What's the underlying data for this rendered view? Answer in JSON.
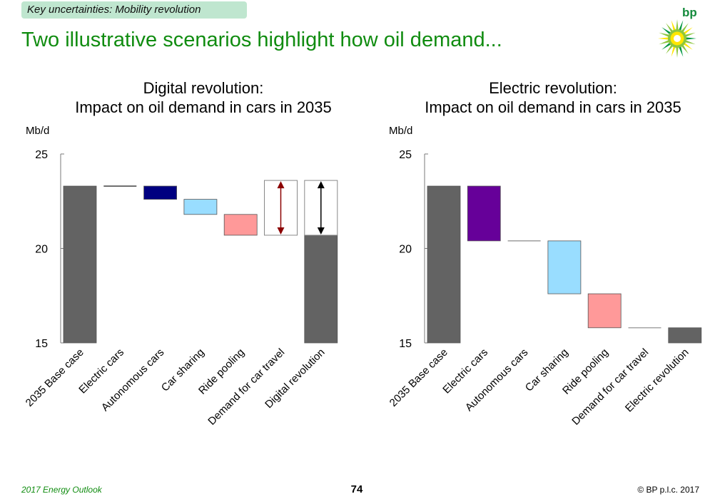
{
  "header": {
    "tag": "Key uncertainties: Mobility revolution",
    "title": "Two illustrative scenarios highlight how oil demand..."
  },
  "logo": {
    "text": "bp",
    "icon": "bp-helios-logo-icon"
  },
  "footer": {
    "left": "2017 Energy Outlook",
    "page": "74",
    "right": "© BP p.l.c. 2017"
  },
  "chart_data": [
    {
      "type": "bar",
      "subtype": "waterfall",
      "title_line1": "Digital revolution:",
      "title_line2": "Impact on oil demand in cars in 2035",
      "ylabel": "Mb/d",
      "ylim": [
        15,
        25
      ],
      "yticks": [
        "15",
        "20",
        "25"
      ],
      "grid": false,
      "categories": [
        "2035 Base case",
        "Electric cars",
        "Autonomous cars",
        "Car sharing",
        "Ride pooling",
        "Demand for car travel",
        "Digital revolution"
      ],
      "bars": [
        {
          "kind": "total",
          "low": 15,
          "high": 23.3,
          "color": "#636363"
        },
        {
          "kind": "delta",
          "low": 23.3,
          "high": 23.3,
          "color": "#000000"
        },
        {
          "kind": "delta",
          "low": 22.6,
          "high": 23.3,
          "color": "#000080"
        },
        {
          "kind": "delta",
          "low": 21.8,
          "high": 22.6,
          "color": "#99ddff"
        },
        {
          "kind": "delta",
          "low": 20.7,
          "high": 21.8,
          "color": "#ff9999"
        },
        {
          "kind": "range",
          "low": 20.7,
          "high": 23.6,
          "color": "#8b0000"
        },
        {
          "kind": "total",
          "low": 15,
          "high": 20.7,
          "color": "#636363",
          "range_high": 23.6,
          "range_color": "#000000"
        }
      ]
    },
    {
      "type": "bar",
      "subtype": "waterfall",
      "title_line1": "Electric revolution:",
      "title_line2": "Impact on oil demand in cars in 2035",
      "ylabel": "Mb/d",
      "ylim": [
        15,
        25
      ],
      "yticks": [
        "15",
        "20",
        "25"
      ],
      "grid": false,
      "categories": [
        "2035 Base case",
        "Electric cars",
        "Autonomous cars",
        "Car sharing",
        "Ride pooling",
        "Demand for car travel",
        "Electric revolution"
      ],
      "bars": [
        {
          "kind": "total",
          "low": 15,
          "high": 23.3,
          "color": "#636363"
        },
        {
          "kind": "delta",
          "low": 20.4,
          "high": 23.3,
          "color": "#660099"
        },
        {
          "kind": "delta",
          "low": 20.4,
          "high": 20.4,
          "color": "#888888"
        },
        {
          "kind": "delta",
          "low": 17.6,
          "high": 20.4,
          "color": "#99ddff"
        },
        {
          "kind": "delta",
          "low": 15.8,
          "high": 17.6,
          "color": "#ff9999"
        },
        {
          "kind": "delta",
          "low": 15.8,
          "high": 15.8,
          "color": "#888888"
        },
        {
          "kind": "total",
          "low": 15,
          "high": 15.8,
          "color": "#636363"
        }
      ]
    }
  ]
}
